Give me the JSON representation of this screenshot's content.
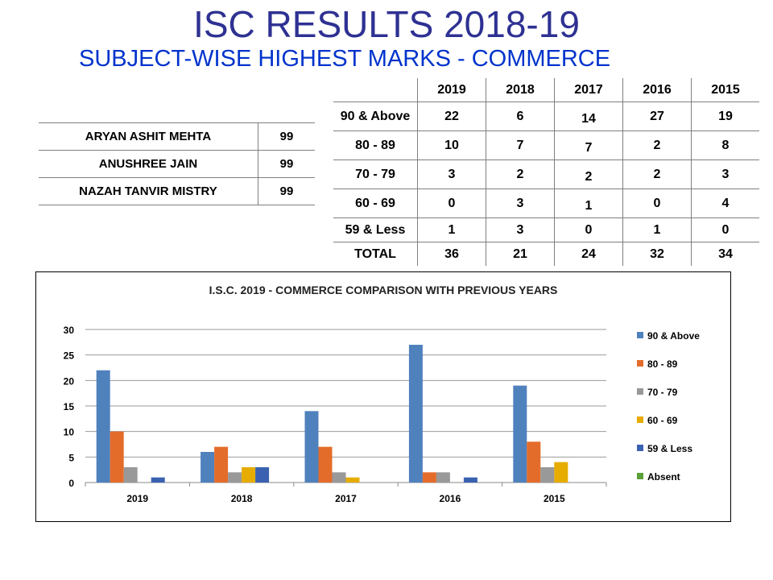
{
  "title": "ISC RESULTS 2018-19",
  "subtitle": "SUBJECT-WISE HIGHEST MARKS - COMMERCE",
  "toppers": [
    {
      "name": "ARYAN ASHIT MEHTA",
      "marks": "99"
    },
    {
      "name": "ANUSHREE JAIN",
      "marks": "99"
    },
    {
      "name": "NAZAH TANVIR MISTRY",
      "marks": "99"
    }
  ],
  "results_table": {
    "headers": [
      "",
      "2019",
      "2018",
      "2017",
      "2016",
      "2015"
    ],
    "rows": [
      [
        "90 & Above",
        "22",
        "6",
        "14",
        "27",
        "19"
      ],
      [
        "80 - 89",
        "10",
        "7",
        "7",
        "2",
        "8"
      ],
      [
        "70 - 79",
        "3",
        "2",
        "2",
        "2",
        "3"
      ],
      [
        "60 - 69",
        "0",
        "3",
        "1",
        "0",
        "4"
      ],
      [
        "59 & Less",
        "1",
        "3",
        "0",
        "1",
        "0"
      ],
      [
        "TOTAL",
        "36",
        "21",
        "24",
        "32",
        "34"
      ]
    ]
  },
  "chart_data": {
    "type": "bar",
    "title": "I.S.C. 2019 - COMMERCE COMPARISON WITH PREVIOUS YEARS",
    "categories": [
      "2019",
      "2018",
      "2017",
      "2016",
      "2015"
    ],
    "ylim": [
      0,
      30
    ],
    "yticks": [
      "0",
      "5",
      "10",
      "15",
      "20",
      "25",
      "30"
    ],
    "grid": true,
    "legend_position": "right",
    "series": [
      {
        "name": "90 & Above",
        "color": "#4f81bd",
        "values": [
          22,
          6,
          14,
          27,
          19
        ]
      },
      {
        "name": "80 - 89",
        "color": "#e46c2a",
        "values": [
          10,
          7,
          7,
          2,
          8
        ]
      },
      {
        "name": "70 - 79",
        "color": "#999999",
        "values": [
          3,
          2,
          2,
          2,
          3
        ]
      },
      {
        "name": "60 - 69",
        "color": "#e6ac00",
        "values": [
          0,
          3,
          1,
          0,
          4
        ]
      },
      {
        "name": "59 & Less",
        "color": "#3a62b0",
        "values": [
          1,
          3,
          0,
          1,
          0
        ]
      },
      {
        "name": "Absent",
        "color": "#5aa13a",
        "values": [
          0,
          0,
          0,
          0,
          0
        ]
      }
    ]
  }
}
